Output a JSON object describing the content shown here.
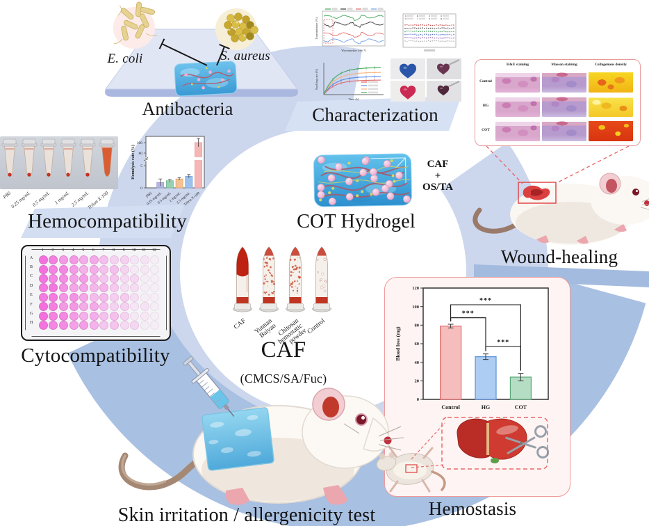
{
  "colors": {
    "ring_light": "#ccd7ee",
    "ring_dark": "#a8c0e2",
    "dashed_red": "#e86a6a",
    "panel_border_pink": "#ef9a9a",
    "panel_bg_pink": "#fdf4f3",
    "hydrogel_blue": "#4ab4e6",
    "well_pink": "#f470de"
  },
  "antibacteria": {
    "label": "Antibacteria",
    "e_coli": "E. coli",
    "s_aureus": "S. aureus"
  },
  "characterization": {
    "label": "Characterization",
    "ftir": {
      "ylabel": "Transmittance (%)",
      "xlabel": "Wavenumber (cm⁻¹)",
      "line_colors": [
        "#45a85c",
        "#3a3a3a",
        "#e26868",
        "#6f9fe8"
      ]
    },
    "rheology": {
      "row_colors": [
        "#c23a3a",
        "#3a3a3a",
        "#3f9a55",
        "#4565c8",
        "#8855aa",
        "#aaaaaa"
      ]
    },
    "swelling": {
      "ylabel": "Swelling rate (%)",
      "xlabel": "Time (h)",
      "line_colors": [
        "#e26868",
        "#5b8ae2",
        "#f2b27e",
        "#45a85c"
      ],
      "plateau_y": [
        31,
        26,
        20,
        13
      ]
    },
    "hearts": [
      {
        "bg": "#ebebed",
        "color": "#2b55a8",
        "handle": false
      },
      {
        "bg": "#dfdfe1",
        "color": "#693450",
        "handle": true
      },
      {
        "bg": "#efecec",
        "color": "#cb2b52",
        "handle": false
      },
      {
        "bg": "#e2e2e4",
        "color": "#50283c",
        "handle": true
      }
    ]
  },
  "hemocompatibility": {
    "label": "Hemocompatibility",
    "tube_labels": [
      "PBS",
      "0.25 mg/mL",
      "0.5 mg/mL",
      "1 mg/mL",
      "2.5 mg/mL",
      "Triton X-100"
    ]
  },
  "cot": {
    "label": "COT Hydrogel",
    "annotation": [
      "CAF",
      "+",
      "OS/TA"
    ]
  },
  "wound": {
    "label": "Wound-healing",
    "histology": {
      "columns": [
        "H&E staining",
        "Masson staining",
        "Collagenous density"
      ],
      "rows": [
        "Control",
        "HG",
        "COT"
      ]
    }
  },
  "cyto": {
    "label": "Cytocompatibility",
    "plate_columns": [
      "1",
      "2",
      "3",
      "4",
      "5",
      "6",
      "7",
      "8",
      "9",
      "10",
      "11",
      "12"
    ],
    "plate_rows": [
      "A",
      "B",
      "C",
      "D",
      "E",
      "F",
      "G",
      "H"
    ]
  },
  "caf": {
    "title": "CAF",
    "subtitle": "(CMCS/SA/Fuc)",
    "tube_labels": [
      "CAF",
      "Yunnan Baiyao",
      "Chitosan hemostatic powder",
      "Control"
    ]
  },
  "hemostasis": {
    "label": "Hemostasis"
  },
  "skin": {
    "label": "Skin irritation / allergenicity test"
  },
  "chart_data": [
    {
      "id": "blood_loss",
      "type": "bar",
      "ylabel": "Blood loss (mg)",
      "categories": [
        "Control",
        "HG",
        "COT"
      ],
      "values": [
        79,
        46,
        24
      ],
      "errors": [
        2,
        3,
        4
      ],
      "ylim": [
        0,
        120
      ],
      "yticks": [
        0,
        20,
        40,
        60,
        80,
        100,
        120
      ],
      "bar_fill": [
        "#f6bdbd",
        "#aecdf2",
        "#b5ddc3"
      ],
      "bar_edge": [
        "#e06c6c",
        "#5b8fd8",
        "#5aa87a"
      ],
      "significance": [
        {
          "from": "Control",
          "to": "COT",
          "level": 102,
          "label": "***"
        },
        {
          "from": "Control",
          "to": "HG",
          "level": 88,
          "label": "***"
        },
        {
          "from": "HG",
          "to": "COT",
          "level": 57,
          "label": "***"
        }
      ]
    },
    {
      "id": "hemolysis",
      "type": "bar",
      "ylabel": "Hemolysis rate (%)",
      "categories": [
        "PBS",
        "0.25 mg/mL",
        "0.5 mg/mL",
        "1 mg/mL",
        "2.5 mg/mL",
        "Triton X-100"
      ],
      "values": [
        0,
        1.2,
        1.6,
        2.0,
        2.6,
        100
      ],
      "errors": [
        0,
        0.8,
        0.3,
        0.3,
        0.4,
        8
      ],
      "yticks": [
        0,
        5,
        80,
        100
      ],
      "broken_axis": true,
      "bar_colors": [
        "#cccce8",
        "#b6b6e6",
        "#9ad0b2",
        "#f4c295",
        "#9dc1ed",
        "#f6b6b6"
      ],
      "bar_edges": [
        "#a8a8d8",
        "#9a9ad0",
        "#6fb892",
        "#e0a468",
        "#76a4de",
        "#e89494"
      ]
    },
    {
      "id": "swelling_mini",
      "type": "line",
      "xlabel": "Time (h)",
      "ylabel": "Swelling rate (%)",
      "series": [
        {
          "color": "#e26868"
        },
        {
          "color": "#5b8ae2"
        },
        {
          "color": "#f2b27e"
        },
        {
          "color": "#45a85c"
        }
      ]
    }
  ]
}
